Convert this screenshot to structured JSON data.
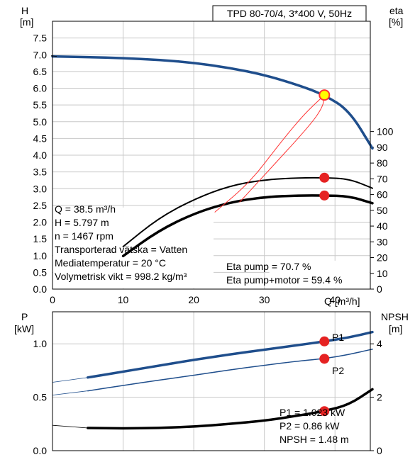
{
  "chart_data": [
    {
      "type": "line",
      "title": "TPD 80-70/4, 3*400 V, 50Hz",
      "xlabel": "Q [m³/h]",
      "xlim": [
        0,
        45
      ],
      "x_ticks": [
        "0",
        "10",
        "20",
        "30",
        "40"
      ],
      "left_axis": {
        "label_top": "H",
        "label_unit": "[m]",
        "ylim": [
          0,
          8
        ],
        "ticks": [
          "0.0",
          "0.5",
          "1.0",
          "1.5",
          "2.0",
          "2.5",
          "3.0",
          "3.5",
          "4.0",
          "4.5",
          "5.0",
          "5.5",
          "6.0",
          "6.5",
          "7.0",
          "7.5"
        ]
      },
      "right_axis": {
        "label_top": "eta",
        "label_unit": "[%]",
        "ylim": [
          0,
          170
        ],
        "ticks": [
          "0",
          "10",
          "20",
          "30",
          "40",
          "50",
          "60",
          "70",
          "80",
          "90",
          "100"
        ]
      },
      "series": [
        {
          "axis": "left",
          "x": [
            0,
            5,
            10,
            15,
            20,
            25,
            30,
            35,
            38.5,
            42,
            45.3
          ],
          "y": [
            6.95,
            6.93,
            6.9,
            6.85,
            6.76,
            6.61,
            6.4,
            6.08,
            5.797,
            5.34,
            4.2
          ]
        },
        {
          "axis": "right",
          "x": [
            10,
            15,
            20,
            25,
            30,
            35,
            38.5,
            42,
            45.3
          ],
          "y": [
            27,
            45,
            57,
            65.5,
            69.5,
            70.6,
            70.7,
            70,
            64
          ]
        },
        {
          "axis": "right",
          "x": [
            10,
            15,
            20,
            25,
            30,
            35,
            38.5,
            42,
            45.3
          ],
          "y": [
            21,
            37,
            48,
            55,
            58.5,
            59.4,
            59.4,
            59,
            54.5
          ]
        },
        {
          "axis": "left",
          "x": [
            23,
            28,
            32,
            35.5,
            38.5
          ],
          "y": [
            2.3,
            3.2,
            4.3,
            5.2,
            5.797
          ]
        },
        {
          "axis": "left",
          "x": [
            38.5,
            38.3,
            36.5,
            30,
            26.5
          ],
          "y": [
            5.797,
            5.45,
            4.9,
            3.4,
            2.6
          ]
        }
      ],
      "operating_point": {
        "q": 38.5,
        "h": 5.797,
        "eta_pump": 70.7,
        "eta_total": 59.4
      },
      "info_lines": [
        "Q = 38.5 m³/h",
        "H = 5.797 m",
        "n = 1467 rpm",
        "Transporterad vätska = Vatten",
        "Mediatemperatur = 20 °C",
        "Volymetrisk vikt = 998.2 kg/m³"
      ],
      "eta_lines": [
        "Eta pump = 70.7 %",
        "Eta pump+motor = 59.4 %"
      ],
      "colors": {
        "head": "#1f4e8c",
        "npsh_red": "#ff3333",
        "op_yellow": "#ffff00",
        "marker": "#e52222",
        "grid": "#c8c8c8"
      }
    },
    {
      "type": "line",
      "xlim": [
        0,
        45
      ],
      "left_axis": {
        "label_top": "P",
        "label_unit": "[kW]",
        "ylim": [
          0,
          1.3
        ],
        "ticks": [
          "0.0",
          "0.5",
          "1.0"
        ]
      },
      "right_axis": {
        "label_top": "NPSH",
        "label_unit": "[m]",
        "ylim": [
          0,
          5.2
        ],
        "ticks": [
          "0",
          "2",
          "4"
        ]
      },
      "series": [
        {
          "name": "P1",
          "axis": "left",
          "x": [
            0,
            5,
            10,
            15,
            20,
            25,
            30,
            35,
            38.5,
            42,
            45.3
          ],
          "y": [
            0.64,
            0.685,
            0.74,
            0.795,
            0.85,
            0.9,
            0.945,
            0.99,
            1.023,
            1.06,
            1.11
          ]
        },
        {
          "name": "P2",
          "axis": "left",
          "x": [
            0,
            5,
            10,
            15,
            20,
            25,
            30,
            35,
            38.5,
            42,
            45.3
          ],
          "y": [
            0.52,
            0.56,
            0.61,
            0.66,
            0.705,
            0.755,
            0.8,
            0.84,
            0.86,
            0.9,
            0.95
          ]
        },
        {
          "axis": "right",
          "x": [
            0,
            5,
            10,
            15,
            20,
            25,
            30,
            35,
            38.5,
            42,
            45.3
          ],
          "y": [
            0.95,
            0.85,
            0.83,
            0.85,
            0.9,
            1.0,
            1.12,
            1.32,
            1.48,
            1.72,
            2.3
          ]
        }
      ],
      "point_labels": [
        "P1",
        "P2"
      ],
      "info_lines": [
        "P1 = 1.023 kW",
        "P2 = 0.86 kW",
        "NPSH = 1.48 m"
      ],
      "colors": {
        "p": "#1f4e8c",
        "npsh": "#000000",
        "marker": "#e52222"
      }
    }
  ]
}
